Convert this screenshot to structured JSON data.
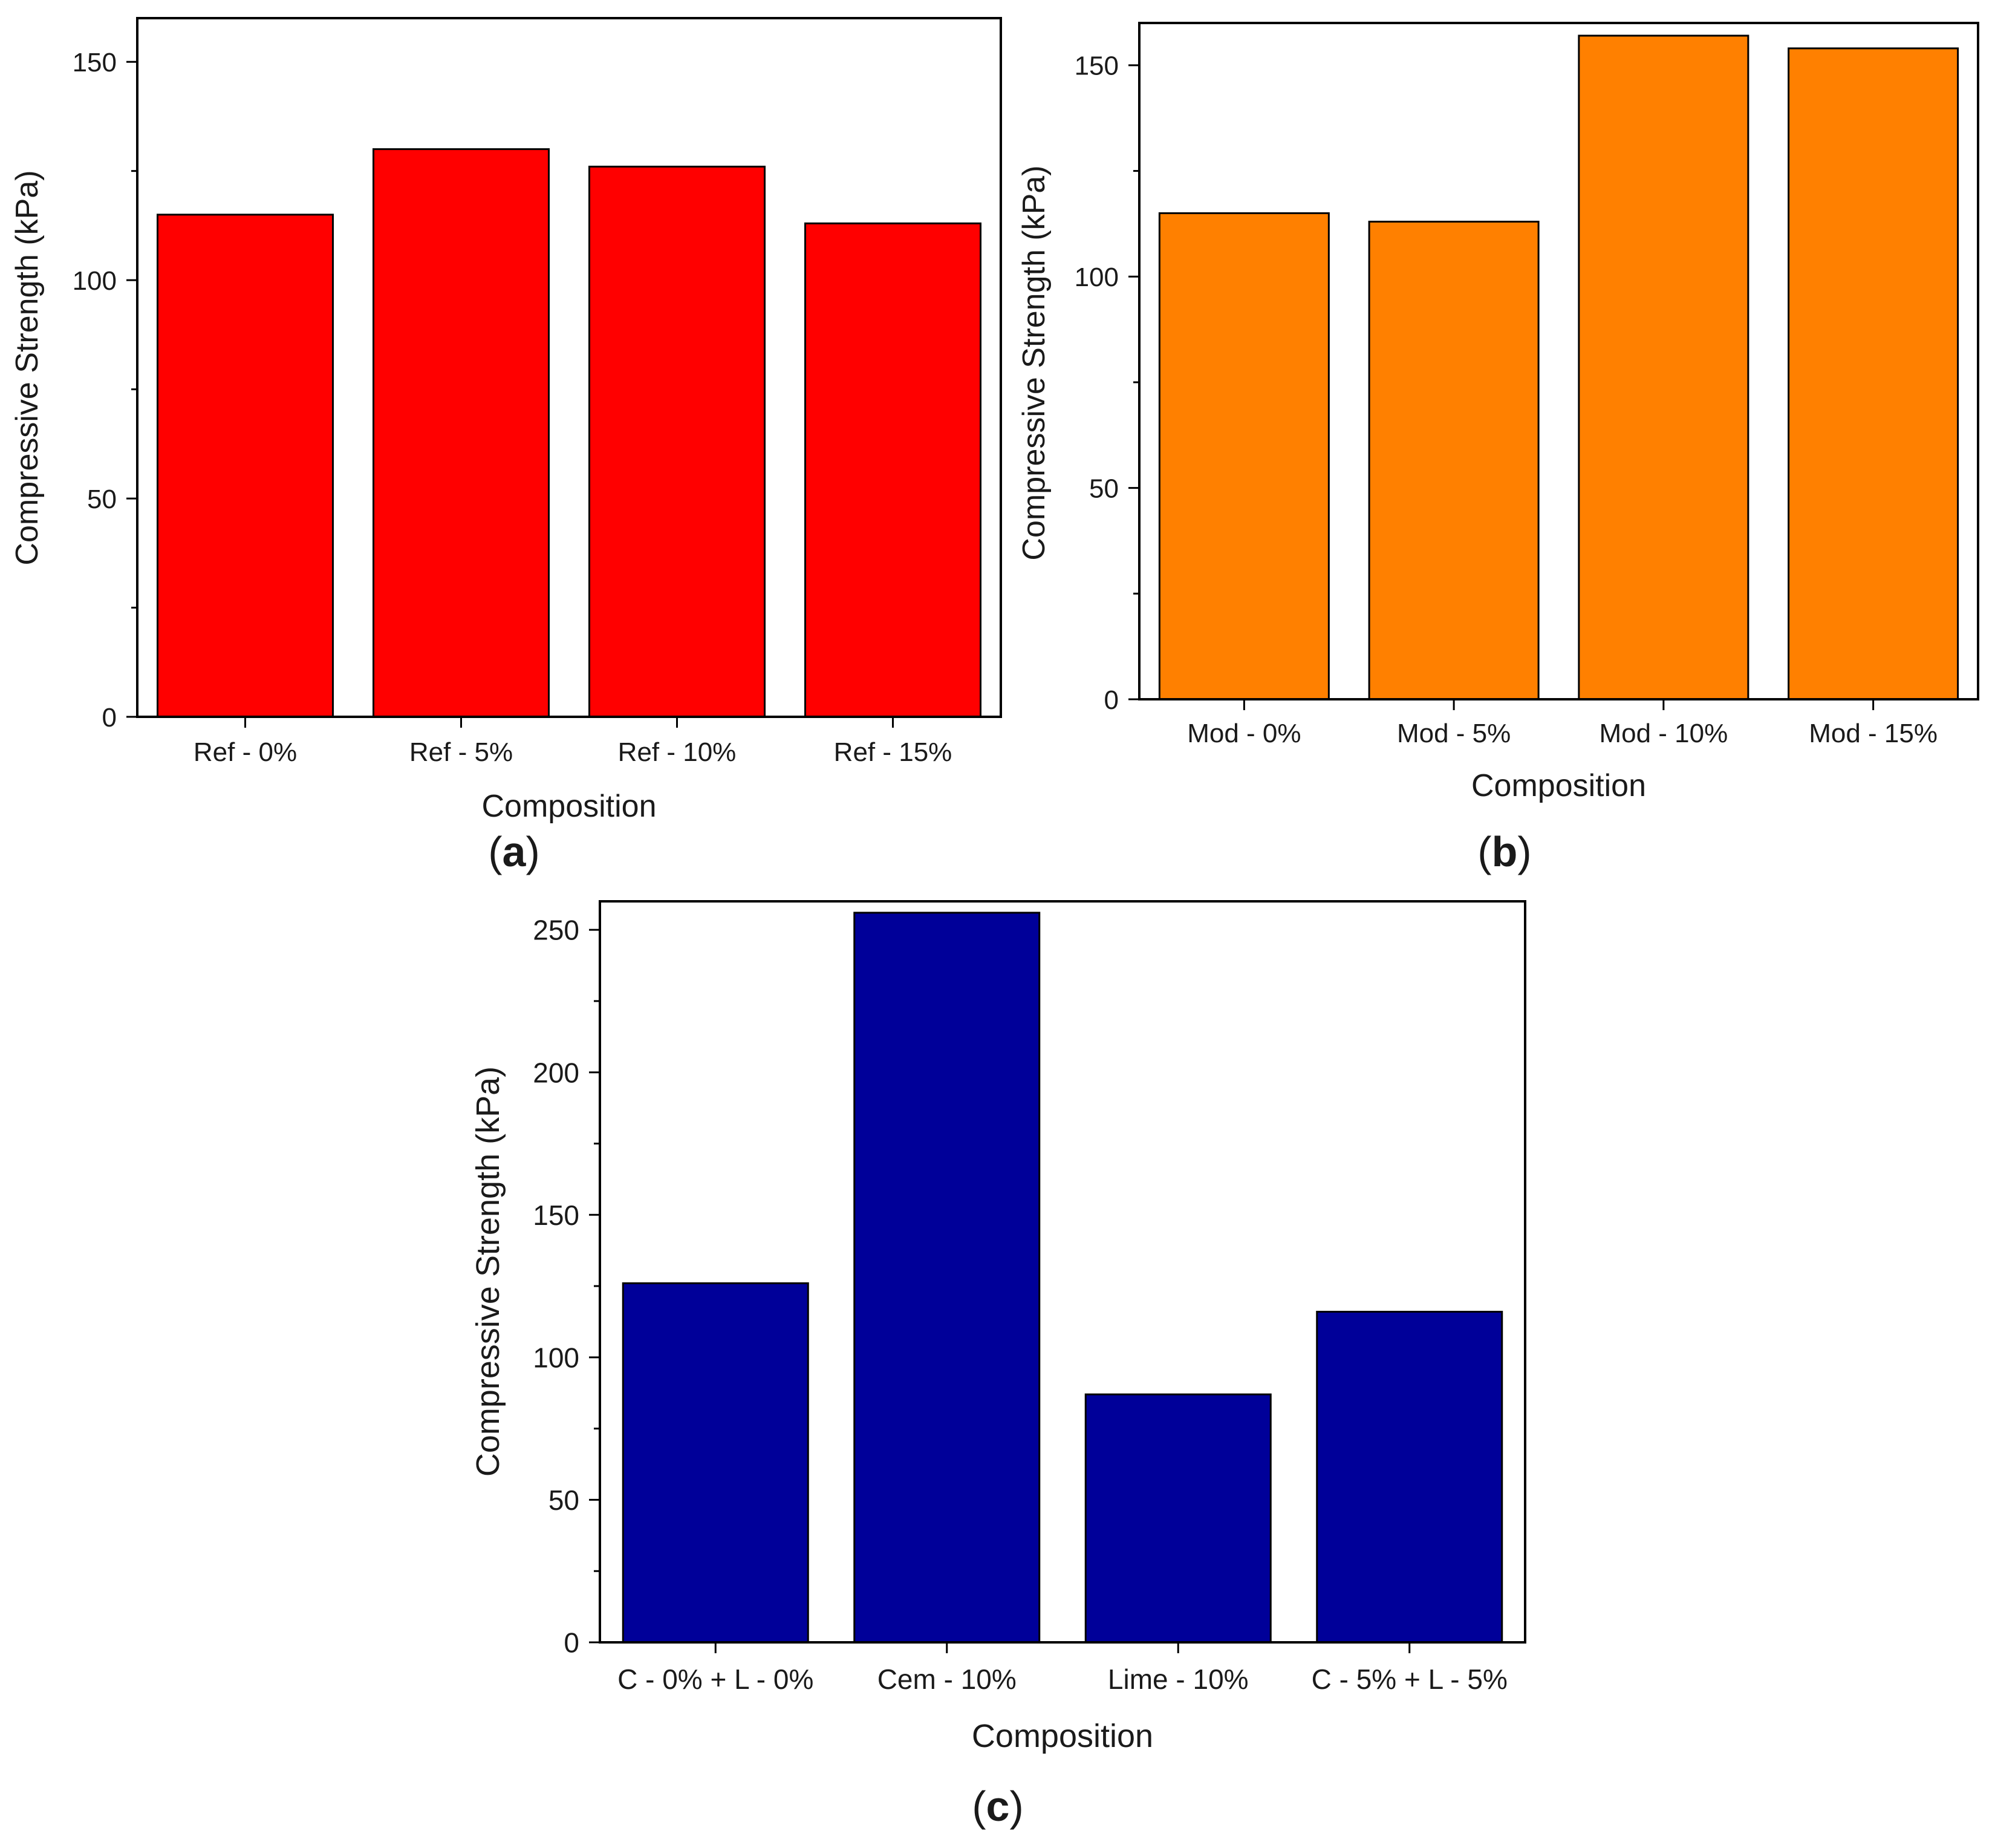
{
  "chart_data": [
    {
      "panel_label": "a",
      "type": "bar",
      "categories": [
        "Ref - 0%",
        "Ref - 5%",
        "Ref - 10%",
        "Ref - 15%"
      ],
      "values": [
        115,
        130,
        126,
        113
      ],
      "xlabel": "Composition",
      "ylabel": "Compressive Strength (kPa)",
      "ylim": [
        0,
        160
      ],
      "yticks": [
        0,
        50,
        100,
        150
      ],
      "bar_color": "#ff0000",
      "grid": false
    },
    {
      "panel_label": "b",
      "type": "bar",
      "categories": [
        "Mod - 0%",
        "Mod - 5%",
        "Mod - 10%",
        "Mod - 15%"
      ],
      "values": [
        115,
        113,
        157,
        154
      ],
      "xlabel": "Composition",
      "ylabel": "Compressive Strength (kPa)",
      "ylim": [
        0,
        160
      ],
      "yticks": [
        0,
        50,
        100,
        150
      ],
      "bar_color": "#ff8000",
      "grid": false
    },
    {
      "panel_label": "c",
      "type": "bar",
      "categories": [
        "C - 0% + L - 0%",
        "Cem - 10%",
        "Lime - 10%",
        "C - 5% + L - 5%"
      ],
      "values": [
        126,
        256,
        87,
        116
      ],
      "xlabel": "Composition",
      "ylabel": "Compressive Strength (kPa)",
      "ylim": [
        0,
        260
      ],
      "yticks": [
        0,
        50,
        100,
        150,
        200,
        250
      ],
      "bar_color": "#000099",
      "grid": false
    }
  ]
}
